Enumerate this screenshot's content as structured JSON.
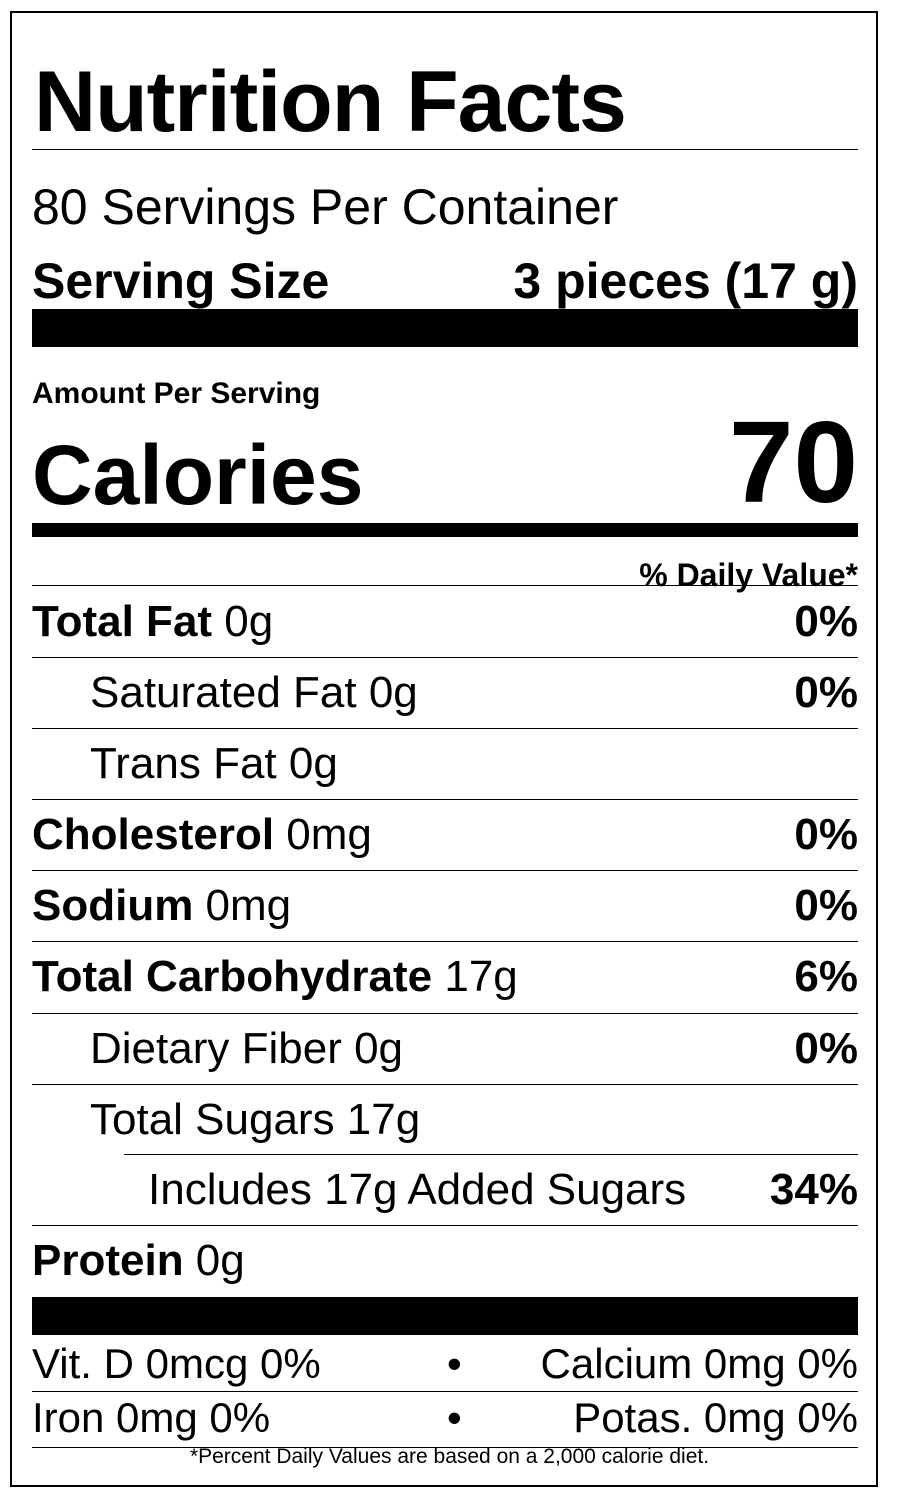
{
  "title": "Nutrition Facts",
  "servings_per_container": "80 Servings Per Container",
  "serving_size": {
    "label": "Serving Size",
    "value": "3 pieces (17 g)"
  },
  "amount_per_serving": "Amount Per Serving",
  "calories": {
    "label": "Calories",
    "value": "70"
  },
  "daily_value_header": "% Daily Value*",
  "nutrients": [
    {
      "name": "Total Fat",
      "amount": " 0g",
      "dv": "0%"
    },
    {
      "name": "Saturated Fat 0g",
      "dv": "0%"
    },
    {
      "name": "Trans Fat 0g",
      "dv": ""
    },
    {
      "name": "Cholesterol",
      "amount": " 0mg",
      "dv": "0%"
    },
    {
      "name": "Sodium",
      "amount": " 0mg",
      "dv": "0%"
    },
    {
      "name": "Total Carbohydrate",
      "amount": " 17g",
      "dv": "6%"
    },
    {
      "name": "Dietary Fiber 0g",
      "dv": "0%"
    },
    {
      "name": "Total Sugars 17g",
      "dv": ""
    },
    {
      "name": "Includes 17g Added Sugars",
      "dv": "34%"
    },
    {
      "name": "Protein",
      "amount": " 0g",
      "dv": ""
    }
  ],
  "vitamins": [
    {
      "left": "Vit. D 0mcg 0%",
      "separator": "•",
      "right": "Calcium 0mg 0%"
    },
    {
      "left": "Iron 0mg 0%",
      "separator": "•",
      "right": "Potas. 0mg 0%"
    }
  ],
  "footnote": "*Percent Daily Values are based on a 2,000 calorie diet."
}
